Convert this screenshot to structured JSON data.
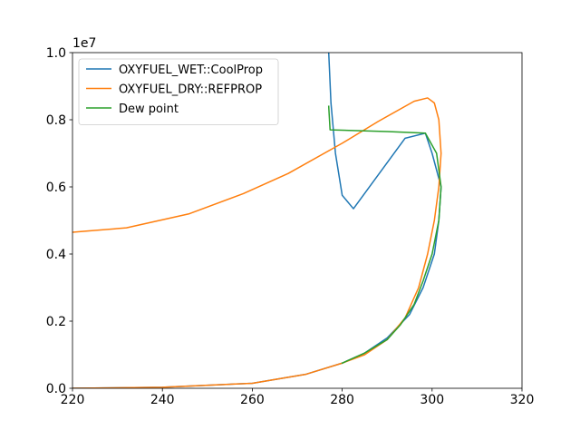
{
  "chart_data": {
    "type": "line",
    "title": "",
    "xlabel": "",
    "ylabel": "",
    "y_offset_label": "1e7",
    "xlim": [
      220,
      320
    ],
    "ylim": [
      0,
      10000000
    ],
    "x_ticks": [
      220,
      240,
      260,
      280,
      300,
      320
    ],
    "x_tick_labels": [
      "220",
      "240",
      "260",
      "280",
      "300",
      "320"
    ],
    "y_ticks": [
      0,
      2000000,
      4000000,
      6000000,
      8000000,
      10000000
    ],
    "y_tick_labels": [
      "0.0",
      "0.2",
      "0.4",
      "0.6",
      "0.8",
      "1.0"
    ],
    "grid": false,
    "legend_position": "top-left",
    "series": [
      {
        "name": "OXYFUEL_WET::CoolProp",
        "color": "#1f77b4",
        "points": [
          [
            220,
            0
          ],
          [
            240,
            30000
          ],
          [
            260,
            150000
          ],
          [
            272,
            420000
          ],
          [
            280,
            750000
          ],
          [
            285,
            1050000
          ],
          [
            290,
            1500000
          ],
          [
            295,
            2200000
          ],
          [
            298,
            3000000
          ],
          [
            300.5,
            4000000
          ],
          [
            301.5,
            5000000
          ],
          [
            302,
            6000000
          ],
          [
            300,
            7000000
          ],
          [
            298.5,
            7600000
          ],
          [
            294,
            7450000
          ],
          [
            282.5,
            5350000
          ],
          [
            280,
            5750000
          ],
          [
            278.5,
            7000000
          ],
          [
            277.5,
            8500000
          ],
          [
            277,
            10000000
          ]
        ]
      },
      {
        "name": "OXYFUEL_DRY::REFPROP",
        "color": "#ff7f0e",
        "points": [
          [
            220,
            0
          ],
          [
            240,
            30000
          ],
          [
            260,
            150000
          ],
          [
            272,
            420000
          ],
          [
            280,
            750000
          ],
          [
            285,
            1000000
          ],
          [
            290,
            1450000
          ],
          [
            294,
            2100000
          ],
          [
            297,
            3000000
          ],
          [
            299,
            4000000
          ],
          [
            300.5,
            5000000
          ],
          [
            301.5,
            6000000
          ],
          [
            302,
            7000000
          ],
          [
            301.5,
            8000000
          ],
          [
            300.5,
            8500000
          ],
          [
            299,
            8650000
          ],
          [
            296,
            8550000
          ],
          [
            288,
            7950000
          ],
          [
            280,
            7300000
          ],
          [
            268,
            6400000
          ],
          [
            258,
            5800000
          ],
          [
            246,
            5200000
          ],
          [
            232,
            4780000
          ],
          [
            220,
            4650000
          ]
        ]
      },
      {
        "name": "Dew point",
        "color": "#2ca02c",
        "points": [
          [
            277,
            8400000
          ],
          [
            277.3,
            7700000
          ],
          [
            290,
            7650000
          ],
          [
            298.5,
            7600000
          ],
          [
            301,
            7000000
          ],
          [
            302,
            6000000
          ],
          [
            301.5,
            5000000
          ],
          [
            300,
            4000000
          ],
          [
            298,
            3200000
          ],
          [
            296,
            2500000
          ],
          [
            293,
            1900000
          ],
          [
            290,
            1450000
          ],
          [
            285,
            1050000
          ],
          [
            280,
            750000
          ]
        ]
      }
    ]
  }
}
